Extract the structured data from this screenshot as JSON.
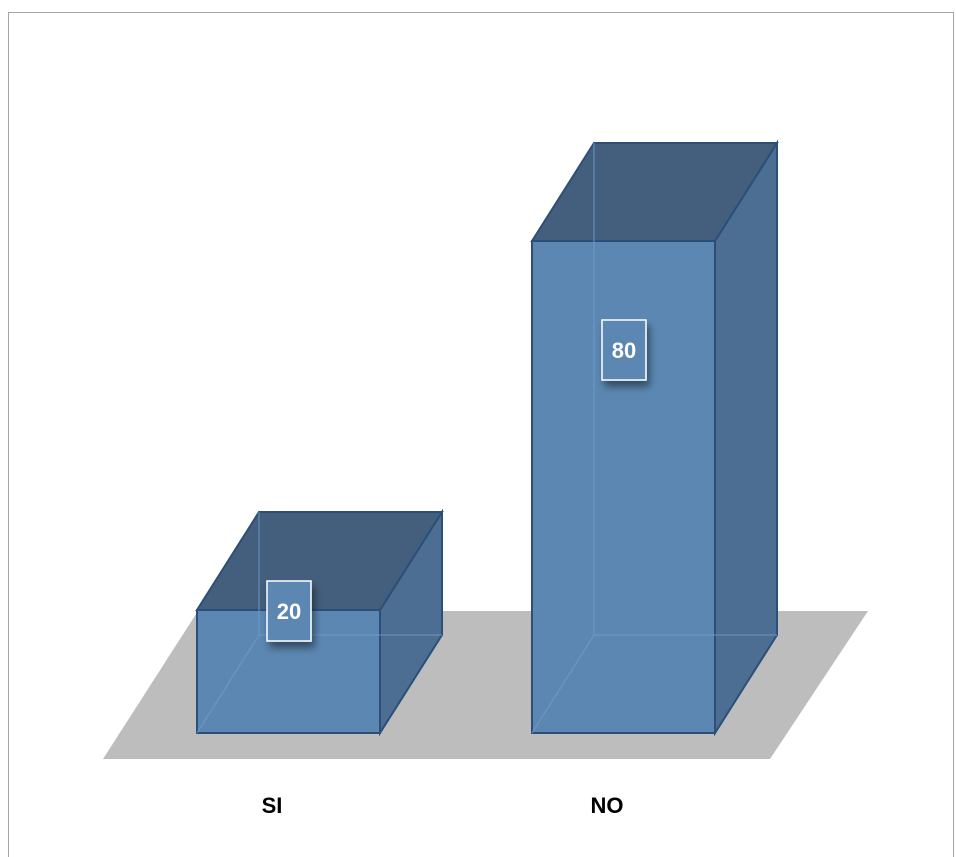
{
  "chart_data": {
    "type": "bar",
    "style": "3d-column",
    "categories": [
      "SI",
      "NO"
    ],
    "values": [
      20,
      80
    ],
    "value_labels": [
      "20",
      "80"
    ],
    "title": "",
    "xlabel": "",
    "ylabel": "",
    "ylim": [
      0,
      80
    ],
    "grid": false,
    "legend": "none",
    "colors": {
      "bar_front": "#5b87b2",
      "bar_top": "#435f7d",
      "bar_side": "#4c6e92",
      "bar_edge": "#2c4f78",
      "floor": "#bdbdbd",
      "frame": "#a6a6a6"
    }
  }
}
